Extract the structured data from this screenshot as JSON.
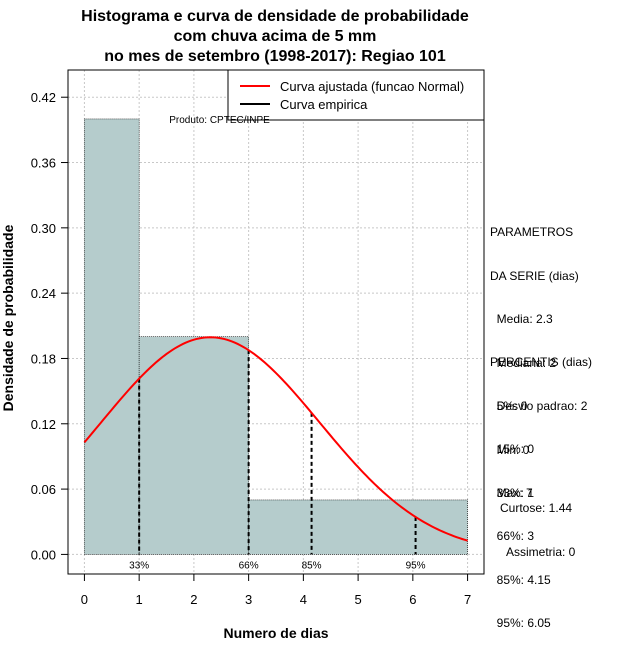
{
  "chart_data": {
    "type": "histogram",
    "title_lines": [
      "Histograma e curva de densidade de probabilidade",
      "com chuva acima de 5 mm",
      "no mes de setembro (1998-2017): Regiao 101"
    ],
    "xlabel": "Numero de dias",
    "ylabel": "Densidade de probabilidade",
    "xlim": [
      -0.3,
      7.3
    ],
    "ylim": [
      -0.018,
      0.445
    ],
    "x_ticks": [
      0,
      1,
      2,
      3,
      4,
      5,
      6,
      7
    ],
    "y_ticks": [
      0.0,
      0.06,
      0.12,
      0.18,
      0.24,
      0.3,
      0.36,
      0.42
    ],
    "y_tick_labels": [
      "0.00",
      "0.06",
      "0.12",
      "0.18",
      "0.24",
      "0.30",
      "0.36",
      "0.42"
    ],
    "grid": true,
    "bins": [
      {
        "x0": 0,
        "x1": 1,
        "density": 0.4
      },
      {
        "x0": 1,
        "x1": 3,
        "density": 0.2
      },
      {
        "x0": 3,
        "x1": 7,
        "density": 0.05
      }
    ],
    "bar_color": "#b5cccc",
    "normal_fit": {
      "mean": 2.3,
      "sd": 2,
      "x_from": 0,
      "x_to": 7,
      "color": "#ff0000"
    },
    "percentile_markers": [
      {
        "label": "33%",
        "x": 1
      },
      {
        "label": "66%",
        "x": 3
      },
      {
        "label": "85%",
        "x": 4.15
      },
      {
        "label": "95%",
        "x": 6.05
      }
    ],
    "legend": {
      "position": "top-right",
      "entries": [
        {
          "label": "Curva ajustada (funcao Normal)",
          "color": "#ff0000"
        },
        {
          "label": "Curva empirica",
          "color": "#000000"
        }
      ]
    },
    "annotation": "Produto: CPTEC/INPE"
  },
  "side_panel": {
    "parametros": [
      "PARAMETROS",
      "DA SERIE (dias)",
      "  Media: 2.3",
      "  Mediana: 2",
      "  Desvio padrao: 2",
      "  Min: 0",
      "  Max: 7"
    ],
    "percentis": [
      "PERCENTIS (dias)",
      "  5%: 0",
      "  15%: 0",
      "  33%: 1",
      "  66%: 3",
      "  85%: 4.15",
      "  95%: 6.05"
    ],
    "shape": [
      "Curtose: 1.44",
      "  Assimetria: 0"
    ]
  }
}
